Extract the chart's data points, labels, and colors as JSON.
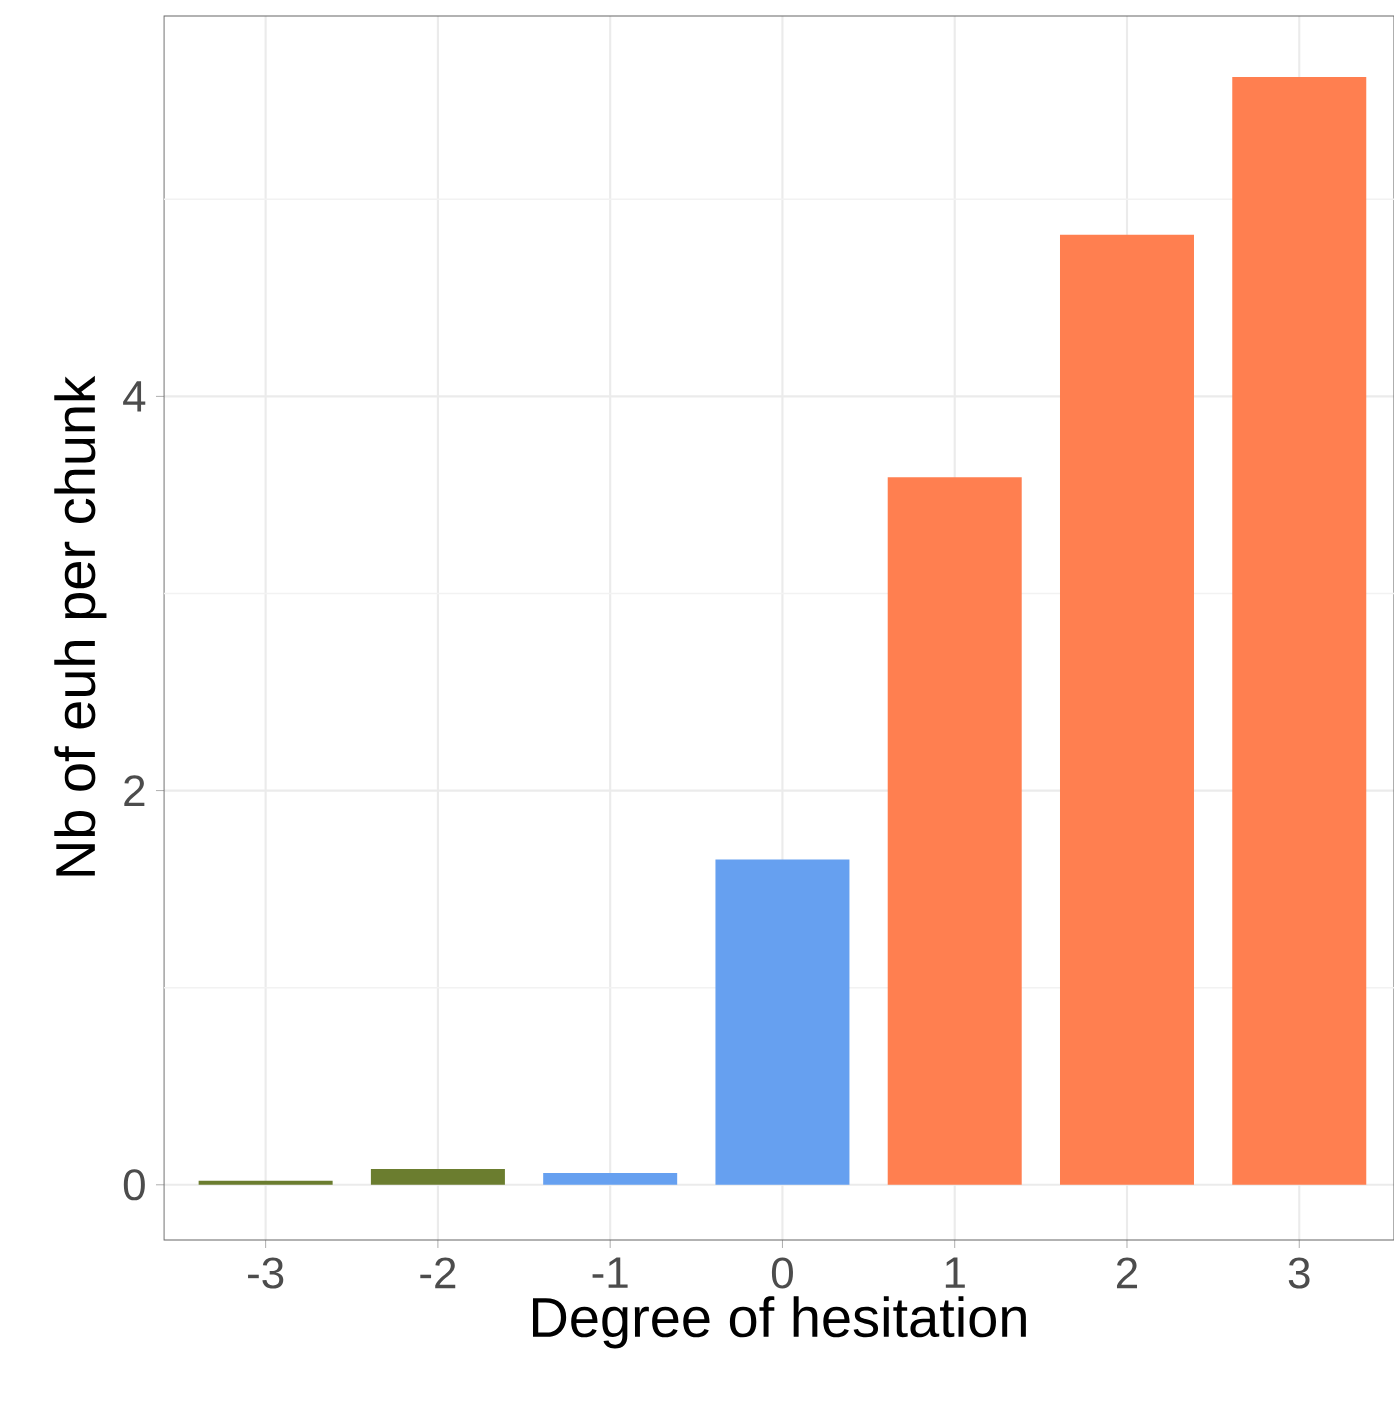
{
  "chart_data": {
    "type": "bar",
    "xlabel": "Degree of hesitation",
    "ylabel": "Nb of euh per chunk",
    "categories": [
      "-3",
      "-2",
      "-1",
      "0",
      "1",
      "2",
      "3"
    ],
    "values": [
      0.02,
      0.08,
      0.06,
      1.65,
      3.59,
      4.82,
      5.62
    ],
    "colors": [
      "#6b7d2f",
      "#6b7d2f",
      "#66a0f0",
      "#66a0f0",
      "#ff7f50",
      "#ff7f50",
      "#ff7f50"
    ],
    "ylim": [
      -0.28,
      5.93
    ],
    "yticks": [
      0,
      {
        "value": 1,
        "label": null
      },
      2,
      {
        "value": 3,
        "label": null
      },
      4,
      {
        "value": 5,
        "label": null
      }
    ],
    "grid": true
  }
}
